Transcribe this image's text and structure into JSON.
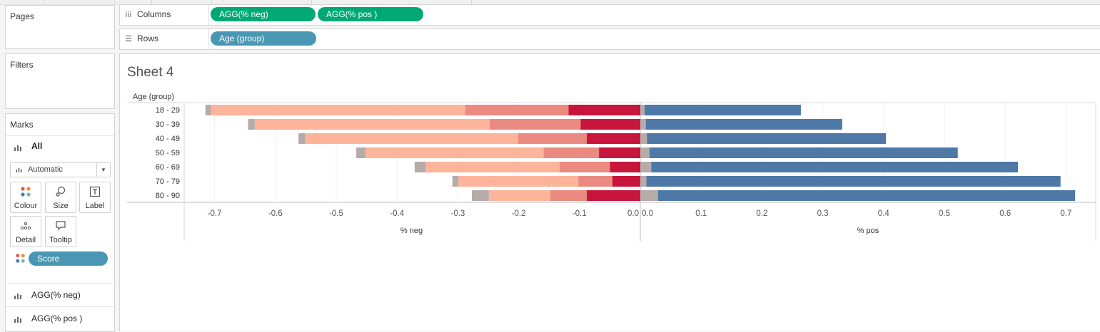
{
  "cards": {
    "pages_title": "Pages",
    "filters_title": "Filters",
    "marks_title": "Marks"
  },
  "shelves": {
    "columns_label": "Columns",
    "rows_label": "Rows",
    "columns_pills": [
      "AGG(% neg)",
      "AGG(% pos )"
    ],
    "rows_pills": [
      "Age (group)"
    ]
  },
  "marks": {
    "all_label": "All",
    "mark_type": "Automatic",
    "buttons": {
      "colour": "Colour",
      "size": "Size",
      "label": "Label",
      "detail": "Detail",
      "tooltip": "Tooltip"
    },
    "color_pill": "Score",
    "measure_tabs": [
      "AGG(% neg)",
      "AGG(% pos )"
    ]
  },
  "sheet": {
    "title": "Sheet 4",
    "row_header": "Age (group)"
  },
  "colors": {
    "neg_light": "#fcb49b",
    "neg_mid": "#ea8a80",
    "neg_strong": "#c8153c",
    "neutral": "#b5aba8",
    "pos": "#4e79a7",
    "pill_green": "#00a974",
    "pill_blue": "#4a97b3"
  },
  "chart_data": {
    "type": "bar",
    "orientation": "horizontal diverging",
    "categories": [
      "18 - 29",
      "30 - 39",
      "40 - 49",
      "50 - 59",
      "60 - 69",
      "70 - 79",
      "80 - 90"
    ],
    "left_panel": {
      "xlabel": "% neg",
      "xlim": [
        -0.75,
        0.0
      ],
      "ticks": [
        "-0.7",
        "-0.6",
        "-0.5",
        "-0.4",
        "-0.3",
        "-0.2",
        "-0.1",
        "0.0"
      ],
      "series": [
        {
          "color": "#c8153c",
          "values": [
            -0.118,
            -0.098,
            -0.088,
            -0.068,
            -0.05,
            -0.046,
            -0.088
          ]
        },
        {
          "color": "#ea8a80",
          "values": [
            -0.17,
            -0.15,
            -0.113,
            -0.091,
            -0.083,
            -0.056,
            -0.06
          ]
        },
        {
          "color": "#fcb49b",
          "values": [
            -0.418,
            -0.386,
            -0.35,
            -0.293,
            -0.22,
            -0.197,
            -0.101
          ]
        },
        {
          "color": "#b5aba8",
          "values": [
            -0.009,
            -0.011,
            -0.011,
            -0.015,
            -0.018,
            -0.01,
            -0.028
          ]
        }
      ]
    },
    "right_panel": {
      "xlabel": "% pos",
      "xlim": [
        0.0,
        0.75
      ],
      "ticks": [
        "0.0",
        "0.1",
        "0.2",
        "0.3",
        "0.4",
        "0.5",
        "0.6",
        "0.7"
      ],
      "series": [
        {
          "color": "#b5aba8",
          "values": [
            0.007,
            0.009,
            0.011,
            0.015,
            0.018,
            0.01,
            0.029
          ]
        },
        {
          "color": "#4e79a7",
          "values": [
            0.257,
            0.323,
            0.393,
            0.507,
            0.603,
            0.681,
            0.686
          ]
        }
      ]
    },
    "grid": true
  }
}
